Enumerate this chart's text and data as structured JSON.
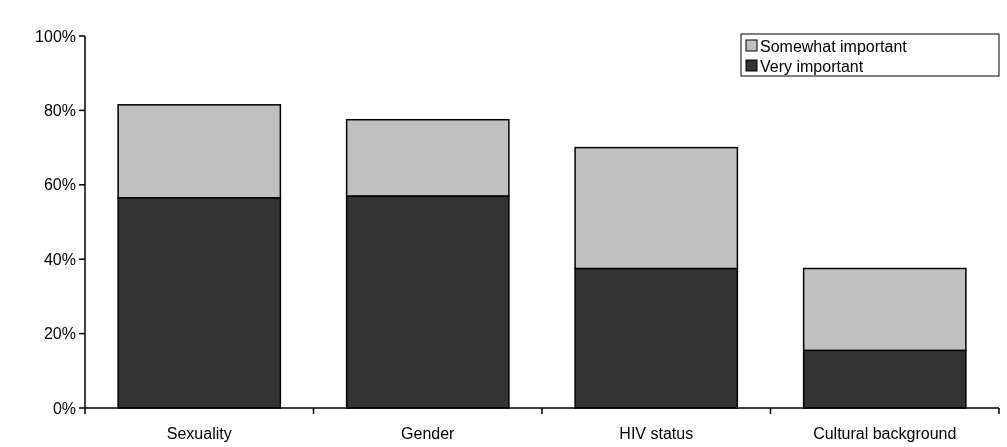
{
  "chart_data": {
    "type": "bar",
    "stacked": true,
    "categories": [
      "Sexuality",
      "Gender",
      "HIV status",
      "Cultural background"
    ],
    "series": [
      {
        "name": "Very important",
        "color": "#333333",
        "values": [
          56.5,
          57,
          37.5,
          15.5
        ]
      },
      {
        "name": "Somewhat important",
        "color": "#c0c0c0",
        "values": [
          25,
          20.5,
          32.5,
          22
        ]
      }
    ],
    "ylim": [
      0,
      100
    ],
    "yticks": [
      {
        "value": 0,
        "label": "0%"
      },
      {
        "value": 20,
        "label": "20%"
      },
      {
        "value": 40,
        "label": "40%"
      },
      {
        "value": 60,
        "label": "60%"
      },
      {
        "value": 80,
        "label": "80%"
      },
      {
        "value": 100,
        "label": "100%"
      }
    ],
    "legend": "top right",
    "grid": false
  }
}
